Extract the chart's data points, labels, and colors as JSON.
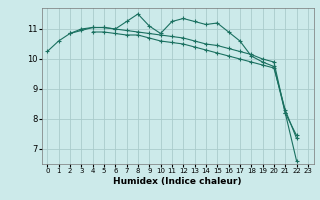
{
  "title": "",
  "xlabel": "Humidex (Indice chaleur)",
  "bg_color": "#cceaea",
  "line_color": "#1a7060",
  "grid_color": "#aacccc",
  "xlim": [
    -0.5,
    23.5
  ],
  "ylim": [
    6.5,
    11.7
  ],
  "yticks": [
    7,
    8,
    9,
    10,
    11
  ],
  "xticks": [
    0,
    1,
    2,
    3,
    4,
    5,
    6,
    7,
    8,
    9,
    10,
    11,
    12,
    13,
    14,
    15,
    16,
    17,
    18,
    19,
    20,
    21,
    22,
    23
  ],
  "series": [
    [
      10.25,
      10.6,
      10.85,
      11.0,
      11.05,
      11.05,
      11.0,
      10.95,
      10.9,
      10.85,
      10.8,
      10.75,
      10.7,
      10.6,
      10.5,
      10.45,
      10.35,
      10.25,
      10.15,
      10.0,
      9.9,
      8.2,
      7.45,
      null
    ],
    [
      null,
      null,
      10.85,
      10.95,
      11.05,
      11.05,
      11.0,
      11.25,
      11.5,
      11.1,
      10.85,
      11.25,
      11.35,
      11.25,
      11.15,
      11.2,
      10.9,
      10.6,
      10.1,
      9.9,
      9.75,
      8.2,
      6.6,
      null
    ],
    [
      null,
      null,
      null,
      null,
      10.9,
      10.9,
      10.85,
      10.8,
      10.8,
      10.7,
      10.6,
      10.55,
      10.5,
      10.4,
      10.3,
      10.2,
      10.1,
      10.0,
      9.9,
      9.8,
      9.7,
      8.3,
      7.35,
      null
    ]
  ]
}
